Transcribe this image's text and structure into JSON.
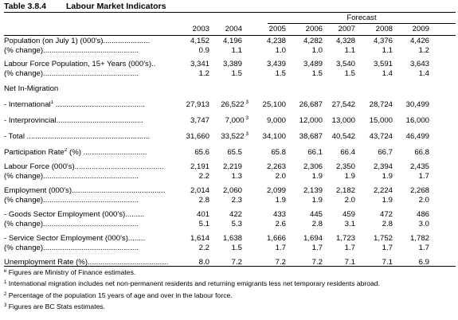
{
  "table": {
    "number": "Table 3.8.4",
    "title": "Labour Market Indicators",
    "forecast_label": "Forecast",
    "years": [
      "2003",
      "2004",
      "2005",
      "2006",
      "2007",
      "2008",
      "2009"
    ]
  },
  "rows": [
    {
      "label": "Population (on July 1)  (000's)......................",
      "values": [
        "4,152",
        "4,196",
        "4,238",
        "4,282",
        "4,328",
        "4,376",
        "4,426"
      ]
    },
    {
      "label": "      (% change).............................................",
      "values": [
        "0.9",
        "1.1",
        "1.0",
        "1.0",
        "1.1",
        "1.1",
        "1.2"
      ]
    },
    {
      "label": "Labour Force Population, 15+ Years (000's)..",
      "values": [
        "3,341",
        "3,389",
        "3,439",
        "3,489",
        "3,540",
        "3,591",
        "3,643"
      ]
    },
    {
      "label": "      (% change).............................................",
      "values": [
        "1.2",
        "1.5",
        "1.5",
        "1.5",
        "1.5",
        "1.4",
        "1.4"
      ]
    },
    {
      "label": "Net In-Migration",
      "values": []
    },
    {
      "label": "   - International",
      "sup": "1",
      "dots": " ..........................................",
      "values": [
        "27,913",
        "26,522",
        "25,100",
        "26,687",
        "27,542",
        "28,724",
        "30,499"
      ],
      "sups": [
        "",
        "3",
        "",
        "",
        "",
        "",
        ""
      ]
    },
    {
      "label": "   - Interprovincial.........................................",
      "values": [
        "3,747",
        "7,000",
        "9,000",
        "12,000",
        "13,000",
        "15,000",
        "16,000"
      ],
      "sups": [
        "",
        "3",
        "",
        "",
        "",
        "",
        ""
      ]
    },
    {
      "label": "   - Total ..........................................................",
      "values": [
        "31,660",
        "33,522",
        "34,100",
        "38,687",
        "40,542",
        "43,724",
        "46,499"
      ],
      "sups": [
        "",
        "3",
        "",
        "",
        "",
        "",
        ""
      ]
    },
    {
      "label": "Participation Rate",
      "sup": "2",
      "dots": "  (%) ..............................",
      "values": [
        "65.6",
        "65.5",
        "65.8",
        "66.1",
        "66.4",
        "66.7",
        "66.8"
      ]
    },
    {
      "label": "Labour Force (000's)..........................................",
      "values": [
        "2,191",
        "2,219",
        "2,263",
        "2,306",
        "2,350",
        "2,394",
        "2,435"
      ]
    },
    {
      "label": "      (% change).............................................",
      "values": [
        "2.2",
        "1.3",
        "2.0",
        "1.9",
        "1.9",
        "1.9",
        "1.7"
      ]
    },
    {
      "label": "Employment (000's)............................................",
      "values": [
        "2,014",
        "2,060",
        "2,099",
        "2,139",
        "2,182",
        "2,224",
        "2,268"
      ]
    },
    {
      "label": "      (% change).............................................",
      "values": [
        "2.8",
        "2.3",
        "1.9",
        "1.9",
        "2.0",
        "1.9",
        "2.0"
      ]
    },
    {
      "label": "   - Goods Sector Employment (000's).........",
      "values": [
        "401",
        "422",
        "433",
        "445",
        "459",
        "472",
        "486"
      ]
    },
    {
      "label": "      (% change).............................................",
      "values": [
        "5.1",
        "5.3",
        "2.6",
        "2.8",
        "3.1",
        "2.8",
        "3.0"
      ]
    },
    {
      "label": "   - Service Sector Employment (000's)........",
      "values": [
        "1,614",
        "1,638",
        "1,666",
        "1,694",
        "1,723",
        "1,752",
        "1,782"
      ]
    },
    {
      "label": "      (% change).............................................",
      "values": [
        "2.2",
        "1.5",
        "1.7",
        "1.7",
        "1.7",
        "1.7",
        "1.7"
      ]
    },
    {
      "label": "Unemployment Rate (%)......................................",
      "values": [
        "8.0",
        "7.2",
        "7.2",
        "7.2",
        "7.1",
        "7.1",
        "6.9"
      ]
    }
  ],
  "footnotes": [
    {
      "mark": "e",
      "text": " Figures are Ministry of Finance estimates."
    },
    {
      "mark": "1",
      "text": " International migration includes net non-permanent residents and returning emigrants less net temporary residents abroad."
    },
    {
      "mark": "2",
      "text": " Percentage of the population 15 years of age and over in the labour force."
    },
    {
      "mark": "3",
      "text": " Figures are BC Stats estimates."
    }
  ]
}
